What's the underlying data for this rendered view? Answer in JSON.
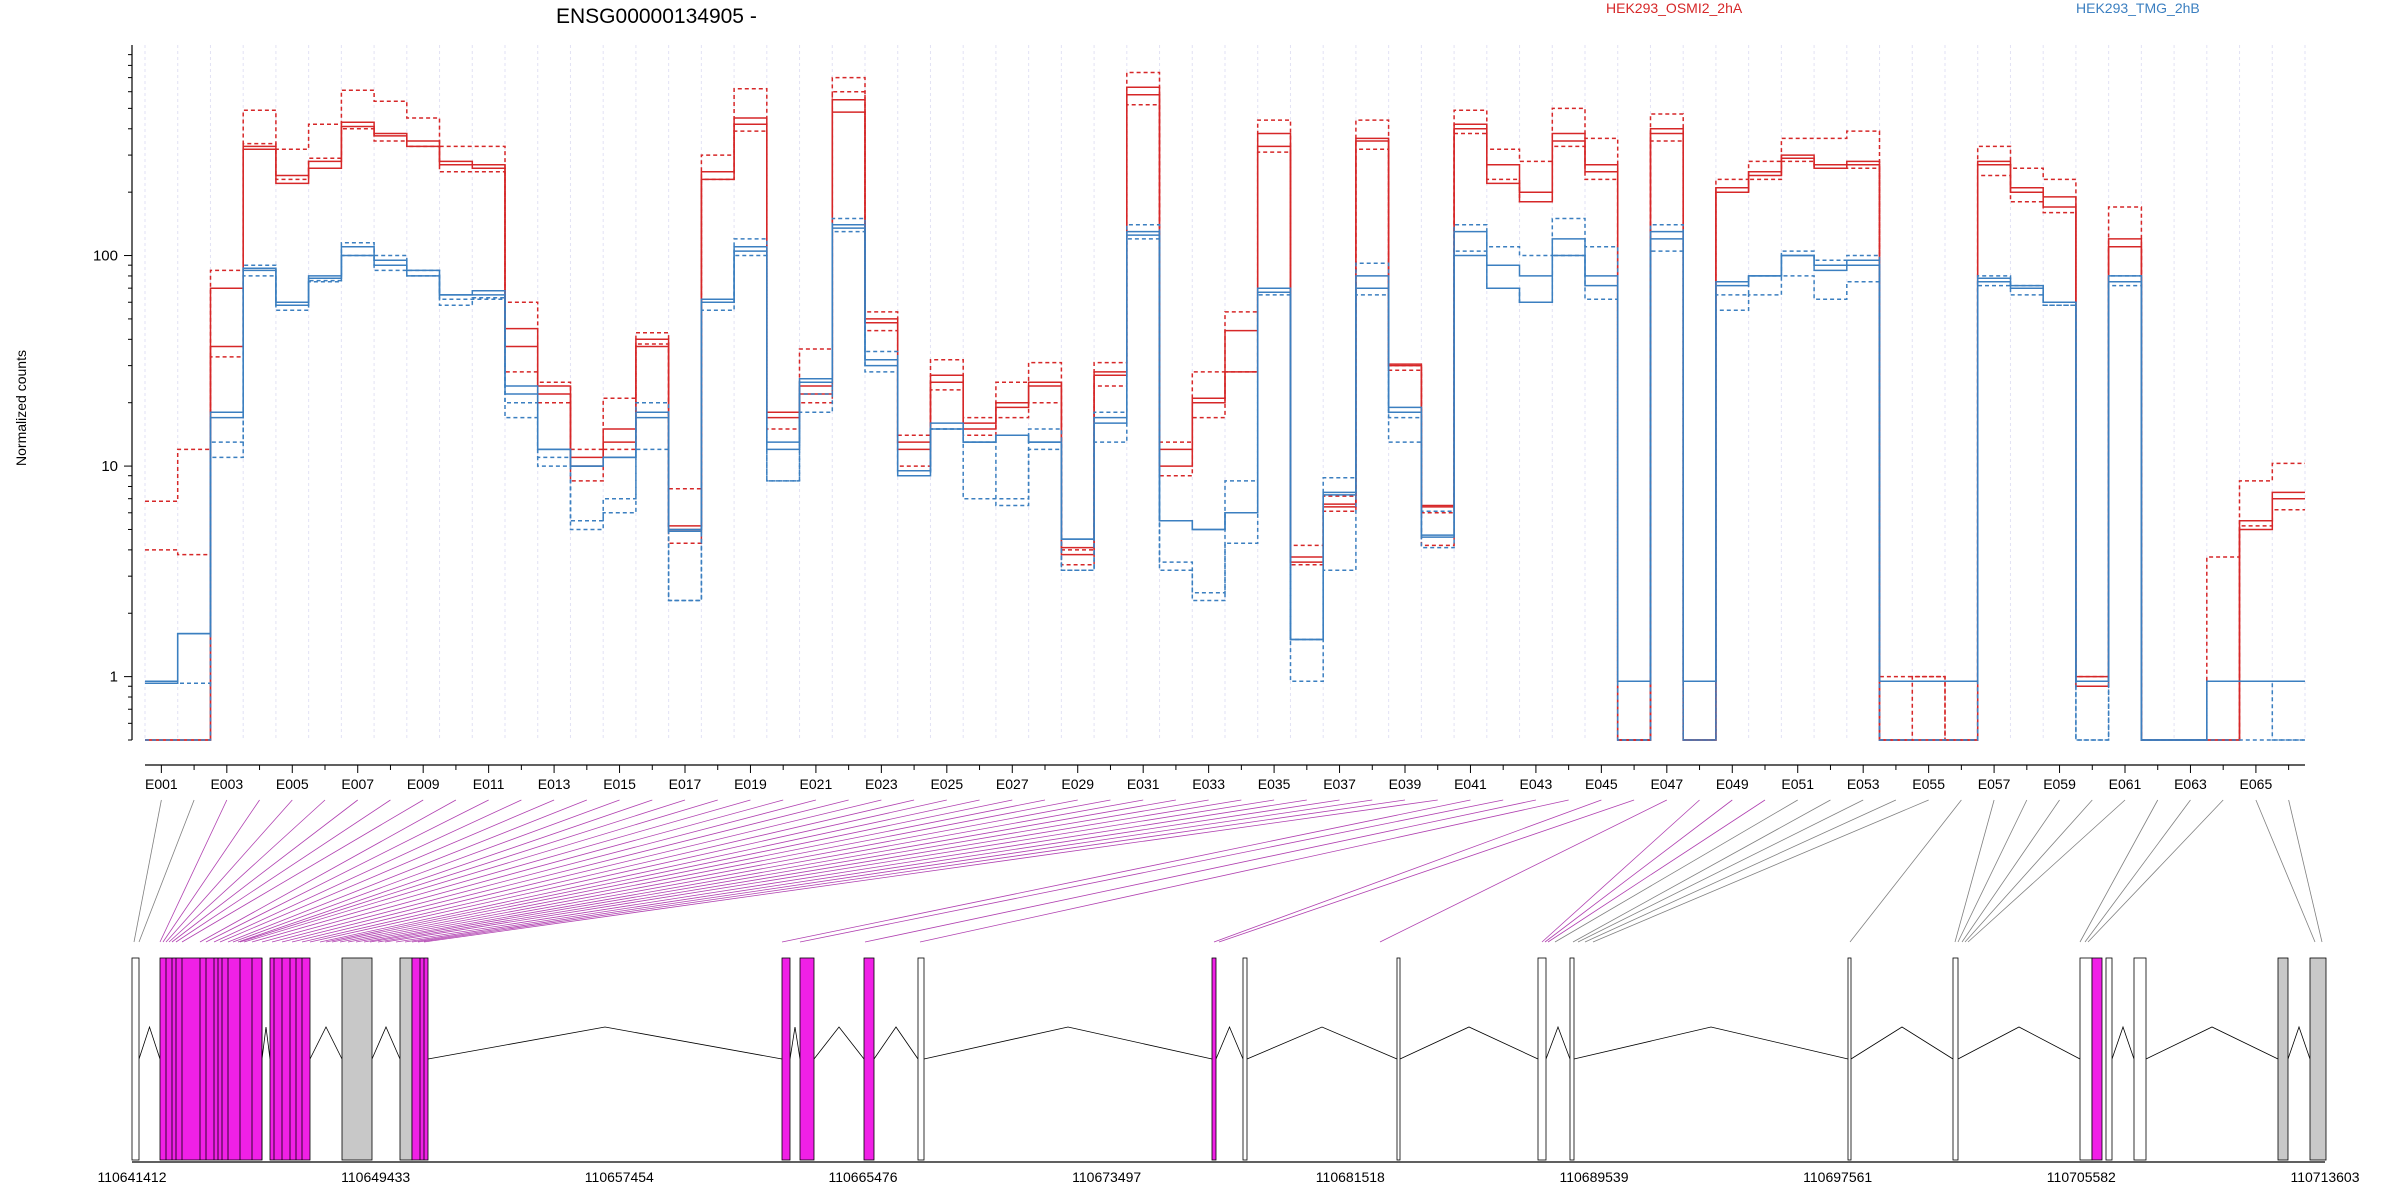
{
  "chart_data": {
    "type": "line",
    "title": "ENSG00000134905 -",
    "ylabel": "Normalized counts",
    "yscale": "log",
    "ylim": [
      0.5,
      1000
    ],
    "yticks": [
      1,
      10,
      100
    ],
    "ytick_labels": [
      "1",
      "10",
      "100"
    ],
    "legend": [
      {
        "label": "HEK293_OSMI2_2hA",
        "color": "#d62728"
      },
      {
        "label": "HEK293_TMG_2hB",
        "color": "#3b7fc0"
      }
    ],
    "categories": [
      "E001",
      "E002",
      "E003",
      "E004",
      "E005",
      "E006",
      "E007",
      "E008",
      "E009",
      "E010",
      "E011",
      "E012",
      "E013",
      "E014",
      "E015",
      "E016",
      "E017",
      "E018",
      "E019",
      "E020",
      "E021",
      "E022",
      "E023",
      "E024",
      "E025",
      "E026",
      "E027",
      "E028",
      "E029",
      "E030",
      "E031",
      "E032",
      "E033",
      "E034",
      "E035",
      "E036",
      "E037",
      "E038",
      "E039",
      "E040",
      "E041",
      "E042",
      "E043",
      "E044",
      "E045",
      "E046",
      "E047",
      "E048",
      "E049",
      "E050",
      "E051",
      "E052",
      "E053",
      "E054",
      "E055",
      "E056",
      "E057",
      "E058",
      "E059",
      "E060",
      "E061",
      "E062",
      "E063",
      "E064",
      "E065",
      "E066"
    ],
    "shown_tick_labels": [
      "E001",
      "E003",
      "E005",
      "E007",
      "E009",
      "E011",
      "E013",
      "E015",
      "E017",
      "E019",
      "E021",
      "E023",
      "E025",
      "E027",
      "E029",
      "E031",
      "E033",
      "E035",
      "E037",
      "E039",
      "E041",
      "E043",
      "E045",
      "E047",
      "E049",
      "E051",
      "E053",
      "E055",
      "E057",
      "E059",
      "E061",
      "E063",
      "E065"
    ],
    "series_groups": [
      {
        "group": "HEK293_OSMI2_2hA",
        "color": "#d62728",
        "series": [
          {
            "style": "solid",
            "values": [
              0.5,
              0.5,
              37,
              330,
              240,
              280,
              430,
              380,
              350,
              280,
              270,
              37,
              22,
              10,
              13,
              37,
              5,
              250,
              450,
              18,
              22,
              550,
              48,
              12,
              25,
              15,
              20,
              25,
              3.8,
              27,
              580,
              10,
              20,
              28,
              330,
              3.5,
              6.4,
              350,
              30,
              6.4,
              400,
              270,
              200,
              380,
              270,
              0.5,
              400,
              0.5,
              210,
              250,
              300,
              270,
              280,
              0.5,
              0.5,
              0.5,
              270,
              210,
              190,
              1,
              110,
              0.5,
              0.5,
              0.5,
              5.5,
              7.5
            ]
          },
          {
            "style": "solid",
            "values": [
              0.5,
              0.5,
              70,
              320,
              220,
              260,
              410,
              370,
              330,
              270,
              260,
              45,
              24,
              11,
              15,
              40,
              5.2,
              230,
              420,
              17,
              24,
              480,
              50,
              13,
              27,
              16,
              19,
              24,
              4.1,
              28,
              630,
              12,
              21,
              44,
              380,
              3.7,
              6.6,
              360,
              30.5,
              6.5,
              420,
              220,
              180,
              350,
              250,
              0.5,
              380,
              0.5,
              200,
              240,
              290,
              260,
              270,
              0.5,
              0.5,
              0.5,
              280,
              200,
              170,
              0.9,
              120,
              0.5,
              0.5,
              0.5,
              5,
              7
            ]
          },
          {
            "style": "dashed",
            "values": [
              6.8,
              12,
              85,
              490,
              320,
              420,
              610,
              540,
              450,
              330,
              330,
              60,
              25,
              12,
              21,
              43,
              7.8,
              300,
              620,
              18,
              36,
              700,
              54,
              14,
              32,
              17,
              25,
              31,
              4,
              31,
              740,
              13,
              28,
              54,
              440,
              4.2,
              7.2,
              440,
              28.5,
              6,
              490,
              320,
              280,
              500,
              360,
              0.5,
              470,
              0.5,
              230,
              280,
              360,
              360,
              390,
              1,
              1,
              0.5,
              330,
              260,
              230,
              1,
              170,
              0.5,
              0.5,
              3.7,
              8.5,
              10.3
            ]
          },
          {
            "style": "dashed",
            "values": [
              4,
              3.8,
              33,
              340,
              230,
              290,
              400,
              350,
              330,
              250,
              250,
              28,
              20,
              8.5,
              12,
              38,
              4.3,
              230,
              390,
              15,
              20,
              600,
              44,
              10,
              23,
              14,
              17,
              20,
              3.4,
              24,
              520,
              9,
              17,
              28,
              310,
              3.4,
              6.1,
              320,
              30,
              4.2,
              380,
              230,
              180,
              330,
              230,
              0.5,
              350,
              0.5,
              200,
              230,
              280,
              260,
              260,
              0.5,
              1,
              0.5,
              240,
              180,
              160,
              0.9,
              110,
              0.5,
              0.5,
              0.5,
              5.2,
              6.2
            ]
          }
        ]
      },
      {
        "group": "HEK293_TMG_2hB",
        "color": "#3b7fc0",
        "series": [
          {
            "style": "solid",
            "values": [
              0.93,
              1.6,
              17,
              87,
              60,
              80,
              110,
              95,
              85,
              65,
              65,
              22,
              12,
              10,
              11,
              17,
              4.9,
              60,
              110,
              12,
              25,
              140,
              30,
              9,
              15,
              13,
              14,
              13,
              4.5,
              17,
              130,
              5.5,
              5,
              6,
              67,
              1.5,
              7.3,
              80,
              19,
              4.7,
              130,
              90,
              80,
              120,
              80,
              0.95,
              130,
              0.95,
              75,
              80,
              100,
              90,
              95,
              0.95,
              0.95,
              0.95,
              78,
              72,
              60,
              0.95,
              80,
              0.5,
              0.5,
              0.95,
              0.95,
              0.95
            ]
          },
          {
            "style": "solid",
            "values": [
              0.95,
              1.6,
              18,
              85,
              58,
              78,
              100,
              90,
              80,
              65,
              68,
              24,
              12,
              10,
              11,
              18,
              5,
              62,
              105,
              13,
              26,
              135,
              32,
              9.5,
              16,
              13,
              14,
              13,
              4.5,
              16,
              125,
              5.5,
              5,
              6,
              70,
              1.5,
              7.5,
              70,
              18,
              4.6,
              100,
              70,
              60,
              100,
              72,
              0.95,
              120,
              0.95,
              72,
              80,
              100,
              85,
              90,
              0.95,
              0.95,
              0.95,
              75,
              70,
              60,
              0.95,
              75,
              0.5,
              0.5,
              0.95,
              0.95,
              0.95
            ]
          },
          {
            "style": "dashed",
            "values": [
              0.5,
              0.5,
              11,
              90,
              55,
              76,
              100,
              85,
              80,
              58,
              63,
              17,
              10,
              5,
              6,
              12,
              2.3,
              60,
              100,
              8.5,
              18,
              130,
              28,
              9,
              15,
              13,
              6.5,
              12,
              3.2,
              13,
              120,
              3.2,
              2.3,
              4.3,
              65,
              0.95,
              3.2,
              65,
              13,
              4.1,
              105,
              70,
              60,
              100,
              62,
              0.5,
              105,
              0.5,
              55,
              65,
              80,
              62,
              75,
              0.5,
              0.5,
              0.5,
              72,
              65,
              58,
              0.5,
              72,
              0.5,
              0.5,
              0.5,
              0.5,
              0.5
            ]
          },
          {
            "style": "dashed",
            "values": [
              0.93,
              0.93,
              13,
              80,
              60,
              75,
              115,
              100,
              85,
              62,
              62,
              20,
              11,
              5.5,
              7,
              20,
              2.3,
              55,
              120,
              8.5,
              22,
              150,
              35,
              9.5,
              15,
              7,
              7,
              15,
              3.2,
              18,
              140,
              3.5,
              2.5,
              8.5,
              70,
              1.5,
              8.8,
              92,
              17,
              6.1,
              140,
              110,
              100,
              150,
              110,
              0.5,
              140,
              0.5,
              65,
              80,
              105,
              95,
              100,
              0.5,
              0.5,
              0.5,
              80,
              72,
              58,
              0.5,
              80,
              0.5,
              0.5,
              0.95,
              0.95,
              0.5
            ]
          }
        ]
      }
    ],
    "gene_model": {
      "coordinate_labels": [
        "110641412",
        "110649433",
        "110657454",
        "110665476",
        "110673497",
        "110681518",
        "110689539",
        "110697561",
        "110705582",
        "110713603"
      ],
      "feature_colors": {
        "significant": "#f020e6",
        "retained": "#c8c8c8",
        "other": "#ffffff",
        "border": "#000000",
        "link_highlight": "#b040b0",
        "link_default": "#808080"
      }
    }
  }
}
